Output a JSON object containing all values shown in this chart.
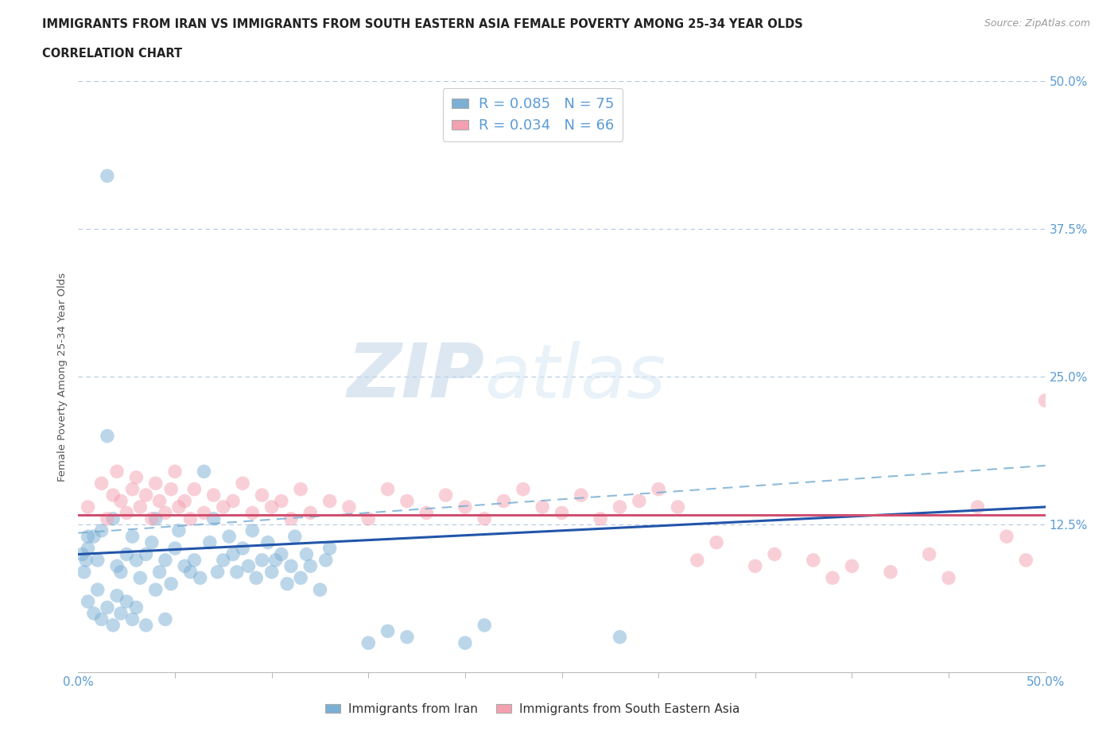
{
  "title_line1": "IMMIGRANTS FROM IRAN VS IMMIGRANTS FROM SOUTH EASTERN ASIA FEMALE POVERTY AMONG 25-34 YEAR OLDS",
  "title_line2": "CORRELATION CHART",
  "source_text": "Source: ZipAtlas.com",
  "ylabel": "Female Poverty Among 25-34 Year Olds",
  "xlim": [
    0.0,
    0.5
  ],
  "ylim": [
    0.0,
    0.5
  ],
  "iran_color": "#7bafd4",
  "sea_color": "#f4a0b0",
  "iran_line_color": "#2255aa",
  "sea_line_color": "#d05070",
  "dashed_line_color": "#7bafd4",
  "iran_R": 0.085,
  "iran_N": 75,
  "sea_R": 0.034,
  "sea_N": 66,
  "legend_label_iran": "Immigrants from Iran",
  "legend_label_sea": "Immigrants from South Eastern Asia",
  "watermark_zip": "ZIP",
  "watermark_atlas": "atlas",
  "background_color": "#ffffff",
  "grid_color": "#b0c8e0",
  "title_color": "#222222",
  "axis_label_color": "#555555",
  "tick_label_color": "#5b9bd5",
  "stat_color": "#5b9bd5",
  "iran_trend": [
    0.1,
    0.14
  ],
  "sea_trend": [
    0.133,
    0.133
  ],
  "dashed_trend": [
    0.118,
    0.175
  ],
  "iran_scatter": [
    [
      0.005,
      0.105
    ],
    [
      0.008,
      0.115
    ],
    [
      0.01,
      0.095
    ],
    [
      0.012,
      0.12
    ],
    [
      0.015,
      0.2
    ],
    [
      0.018,
      0.13
    ],
    [
      0.02,
      0.09
    ],
    [
      0.022,
      0.085
    ],
    [
      0.025,
      0.1
    ],
    [
      0.028,
      0.115
    ],
    [
      0.03,
      0.095
    ],
    [
      0.032,
      0.08
    ],
    [
      0.035,
      0.1
    ],
    [
      0.038,
      0.11
    ],
    [
      0.04,
      0.13
    ],
    [
      0.042,
      0.085
    ],
    [
      0.045,
      0.095
    ],
    [
      0.048,
      0.075
    ],
    [
      0.05,
      0.105
    ],
    [
      0.052,
      0.12
    ],
    [
      0.055,
      0.09
    ],
    [
      0.058,
      0.085
    ],
    [
      0.06,
      0.095
    ],
    [
      0.063,
      0.08
    ],
    [
      0.065,
      0.17
    ],
    [
      0.068,
      0.11
    ],
    [
      0.07,
      0.13
    ],
    [
      0.072,
      0.085
    ],
    [
      0.075,
      0.095
    ],
    [
      0.078,
      0.115
    ],
    [
      0.08,
      0.1
    ],
    [
      0.082,
      0.085
    ],
    [
      0.085,
      0.105
    ],
    [
      0.088,
      0.09
    ],
    [
      0.09,
      0.12
    ],
    [
      0.092,
      0.08
    ],
    [
      0.095,
      0.095
    ],
    [
      0.098,
      0.11
    ],
    [
      0.1,
      0.085
    ],
    [
      0.102,
      0.095
    ],
    [
      0.105,
      0.1
    ],
    [
      0.108,
      0.075
    ],
    [
      0.11,
      0.09
    ],
    [
      0.112,
      0.115
    ],
    [
      0.115,
      0.08
    ],
    [
      0.118,
      0.1
    ],
    [
      0.12,
      0.09
    ],
    [
      0.125,
      0.07
    ],
    [
      0.128,
      0.095
    ],
    [
      0.13,
      0.105
    ],
    [
      0.005,
      0.06
    ],
    [
      0.008,
      0.05
    ],
    [
      0.01,
      0.07
    ],
    [
      0.012,
      0.045
    ],
    [
      0.015,
      0.055
    ],
    [
      0.018,
      0.04
    ],
    [
      0.02,
      0.065
    ],
    [
      0.022,
      0.05
    ],
    [
      0.025,
      0.06
    ],
    [
      0.028,
      0.045
    ],
    [
      0.03,
      0.055
    ],
    [
      0.035,
      0.04
    ],
    [
      0.04,
      0.07
    ],
    [
      0.045,
      0.045
    ],
    [
      0.002,
      0.1
    ],
    [
      0.003,
      0.085
    ],
    [
      0.004,
      0.095
    ],
    [
      0.005,
      0.115
    ],
    [
      0.15,
      0.025
    ],
    [
      0.16,
      0.035
    ],
    [
      0.17,
      0.03
    ],
    [
      0.2,
      0.025
    ],
    [
      0.21,
      0.04
    ],
    [
      0.28,
      0.03
    ],
    [
      0.015,
      0.42
    ]
  ],
  "sea_scatter": [
    [
      0.005,
      0.14
    ],
    [
      0.012,
      0.16
    ],
    [
      0.015,
      0.13
    ],
    [
      0.018,
      0.15
    ],
    [
      0.02,
      0.17
    ],
    [
      0.022,
      0.145
    ],
    [
      0.025,
      0.135
    ],
    [
      0.028,
      0.155
    ],
    [
      0.03,
      0.165
    ],
    [
      0.032,
      0.14
    ],
    [
      0.035,
      0.15
    ],
    [
      0.038,
      0.13
    ],
    [
      0.04,
      0.16
    ],
    [
      0.042,
      0.145
    ],
    [
      0.045,
      0.135
    ],
    [
      0.048,
      0.155
    ],
    [
      0.05,
      0.17
    ],
    [
      0.052,
      0.14
    ],
    [
      0.055,
      0.145
    ],
    [
      0.058,
      0.13
    ],
    [
      0.06,
      0.155
    ],
    [
      0.065,
      0.135
    ],
    [
      0.07,
      0.15
    ],
    [
      0.075,
      0.14
    ],
    [
      0.08,
      0.145
    ],
    [
      0.085,
      0.16
    ],
    [
      0.09,
      0.135
    ],
    [
      0.095,
      0.15
    ],
    [
      0.1,
      0.14
    ],
    [
      0.105,
      0.145
    ],
    [
      0.11,
      0.13
    ],
    [
      0.115,
      0.155
    ],
    [
      0.12,
      0.135
    ],
    [
      0.13,
      0.145
    ],
    [
      0.14,
      0.14
    ],
    [
      0.15,
      0.13
    ],
    [
      0.16,
      0.155
    ],
    [
      0.17,
      0.145
    ],
    [
      0.18,
      0.135
    ],
    [
      0.19,
      0.15
    ],
    [
      0.2,
      0.14
    ],
    [
      0.21,
      0.13
    ],
    [
      0.22,
      0.145
    ],
    [
      0.23,
      0.155
    ],
    [
      0.24,
      0.14
    ],
    [
      0.25,
      0.135
    ],
    [
      0.26,
      0.15
    ],
    [
      0.27,
      0.13
    ],
    [
      0.28,
      0.14
    ],
    [
      0.29,
      0.145
    ],
    [
      0.3,
      0.155
    ],
    [
      0.31,
      0.14
    ],
    [
      0.32,
      0.095
    ],
    [
      0.33,
      0.11
    ],
    [
      0.35,
      0.09
    ],
    [
      0.36,
      0.1
    ],
    [
      0.38,
      0.095
    ],
    [
      0.39,
      0.08
    ],
    [
      0.4,
      0.09
    ],
    [
      0.42,
      0.085
    ],
    [
      0.44,
      0.1
    ],
    [
      0.45,
      0.08
    ],
    [
      0.465,
      0.14
    ],
    [
      0.48,
      0.115
    ],
    [
      0.49,
      0.095
    ],
    [
      0.5,
      0.23
    ]
  ]
}
